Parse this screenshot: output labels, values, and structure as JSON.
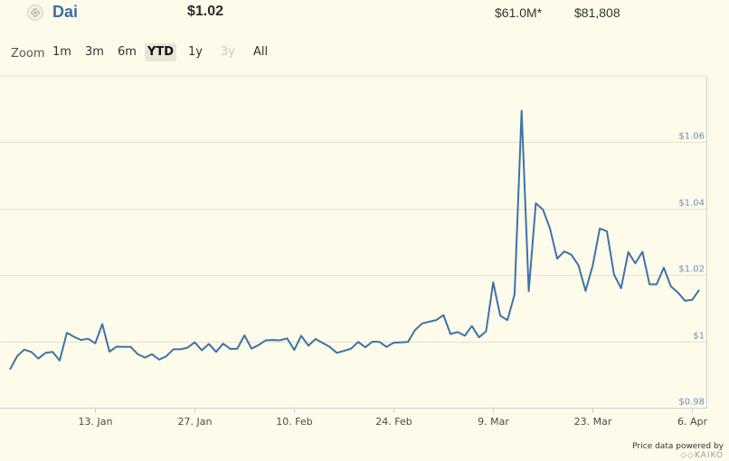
{
  "coin": {
    "name": "Dai",
    "logo_icon": "dai-logo-icon"
  },
  "price": "$1.02",
  "market_cap": "$61.0M*",
  "volume": "$81,808",
  "zoom": {
    "label": "Zoom",
    "buttons": [
      {
        "label": "1m",
        "state": "normal"
      },
      {
        "label": "3m",
        "state": "normal"
      },
      {
        "label": "6m",
        "state": "normal"
      },
      {
        "label": "YTD",
        "state": "active"
      },
      {
        "label": "1y",
        "state": "normal"
      },
      {
        "label": "3y",
        "state": "disabled"
      },
      {
        "label": "All",
        "state": "normal"
      }
    ]
  },
  "footer": {
    "powered_by": "Price data powered by",
    "provider": "KAIKO"
  },
  "colors": {
    "line": "#3c73a8",
    "grid": "#e6e1c8",
    "axis": "#c8d3de",
    "tick_label": "#6b8fbf",
    "background": "#fffbea"
  },
  "chart_data": {
    "type": "line",
    "title": "",
    "xlabel": "",
    "ylabel": "",
    "x_tick_labels": [
      "13. Jan",
      "27. Jan",
      "10. Feb",
      "24. Feb",
      "9. Mar",
      "23. Mar",
      "6. Apr"
    ],
    "y_tick_labels": [
      "$0.98",
      "$1",
      "$1.02",
      "$1.04",
      "$1.06"
    ],
    "y_ticks": [
      0.98,
      1.0,
      1.02,
      1.04,
      1.06
    ],
    "ylim": [
      0.98,
      1.08
    ],
    "x_range": [
      "2020-01-01",
      "2020-04-08"
    ],
    "grid": true,
    "series": [
      {
        "values": [
          [
            "2020-01-01",
            0.9915
          ],
          [
            "2020-01-02",
            0.9955
          ],
          [
            "2020-01-03",
            0.9975
          ],
          [
            "2020-01-04",
            0.9968
          ],
          [
            "2020-01-05",
            0.9948
          ],
          [
            "2020-01-06",
            0.9965
          ],
          [
            "2020-01-07",
            0.9968
          ],
          [
            "2020-01-08",
            0.9942
          ],
          [
            "2020-01-09",
            1.0026
          ],
          [
            "2020-01-10",
            1.0014
          ],
          [
            "2020-01-11",
            1.0004
          ],
          [
            "2020-01-12",
            1.0008
          ],
          [
            "2020-01-13",
            0.9994
          ],
          [
            "2020-01-14",
            1.0052
          ],
          [
            "2020-01-15",
            0.9969
          ],
          [
            "2020-01-16",
            0.9984
          ],
          [
            "2020-01-17",
            0.9983
          ],
          [
            "2020-01-18",
            0.9983
          ],
          [
            "2020-01-19",
            0.9961
          ],
          [
            "2020-01-20",
            0.9951
          ],
          [
            "2020-01-21",
            0.9961
          ],
          [
            "2020-01-22",
            0.9945
          ],
          [
            "2020-01-23",
            0.9955
          ],
          [
            "2020-01-24",
            0.9976
          ],
          [
            "2020-01-25",
            0.9976
          ],
          [
            "2020-01-26",
            0.9981
          ],
          [
            "2020-01-27",
            0.9997
          ],
          [
            "2020-01-28",
            0.9973
          ],
          [
            "2020-01-29",
            0.9992
          ],
          [
            "2020-01-30",
            0.9968
          ],
          [
            "2020-01-31",
            0.9993
          ],
          [
            "2020-02-01",
            0.9977
          ],
          [
            "2020-02-02",
            0.9978
          ],
          [
            "2020-02-03",
            1.0018
          ],
          [
            "2020-02-04",
            0.9978
          ],
          [
            "2020-02-05",
            0.9989
          ],
          [
            "2020-02-06",
            1.0003
          ],
          [
            "2020-02-07",
            1.0004
          ],
          [
            "2020-02-08",
            1.0003
          ],
          [
            "2020-02-09",
            1.0009
          ],
          [
            "2020-02-10",
            0.9974
          ],
          [
            "2020-02-11",
            1.0017
          ],
          [
            "2020-02-12",
            0.9987
          ],
          [
            "2020-02-13",
            1.0007
          ],
          [
            "2020-02-14",
            0.9995
          ],
          [
            "2020-02-15",
            0.9983
          ],
          [
            "2020-02-16",
            0.9965
          ],
          [
            "2020-02-17",
            0.9971
          ],
          [
            "2020-02-18",
            0.9978
          ],
          [
            "2020-02-19",
            0.9998
          ],
          [
            "2020-02-20",
            0.9982
          ],
          [
            "2020-02-21",
            0.9999
          ],
          [
            "2020-02-22",
            0.9998
          ],
          [
            "2020-02-23",
            0.9983
          ],
          [
            "2020-02-24",
            0.9996
          ],
          [
            "2020-02-25",
            0.9997
          ],
          [
            "2020-02-26",
            0.9998
          ],
          [
            "2020-02-27",
            1.0034
          ],
          [
            "2020-02-28",
            1.0054
          ],
          [
            "2020-02-29",
            1.0059
          ],
          [
            "2020-03-01",
            1.0064
          ],
          [
            "2020-03-02",
            1.0079
          ],
          [
            "2020-03-03",
            1.0022
          ],
          [
            "2020-03-04",
            1.0028
          ],
          [
            "2020-03-05",
            1.0017
          ],
          [
            "2020-03-06",
            1.0046
          ],
          [
            "2020-03-07",
            1.0012
          ],
          [
            "2020-03-08",
            1.003
          ],
          [
            "2020-03-09",
            1.0178
          ],
          [
            "2020-03-10",
            1.0077
          ],
          [
            "2020-03-11",
            1.0064
          ],
          [
            "2020-03-12",
            1.0141
          ],
          [
            "2020-03-13",
            1.0695
          ],
          [
            "2020-03-14",
            1.0151
          ],
          [
            "2020-03-15",
            1.0416
          ],
          [
            "2020-03-16",
            1.0397
          ],
          [
            "2020-03-17",
            1.034
          ],
          [
            "2020-03-18",
            1.0249
          ],
          [
            "2020-03-19",
            1.0271
          ],
          [
            "2020-03-20",
            1.0261
          ],
          [
            "2020-03-21",
            1.0229
          ],
          [
            "2020-03-22",
            1.0152
          ],
          [
            "2020-03-23",
            1.0228
          ],
          [
            "2020-03-24",
            1.034
          ],
          [
            "2020-03-25",
            1.0332
          ],
          [
            "2020-03-26",
            1.0201
          ],
          [
            "2020-03-27",
            1.016
          ],
          [
            "2020-03-28",
            1.0269
          ],
          [
            "2020-03-29",
            1.0235
          ],
          [
            "2020-03-30",
            1.027
          ],
          [
            "2020-03-31",
            1.0172
          ],
          [
            "2020-04-01",
            1.0172
          ],
          [
            "2020-04-02",
            1.0222
          ],
          [
            "2020-04-03",
            1.0166
          ],
          [
            "2020-04-04",
            1.0147
          ],
          [
            "2020-04-05",
            1.0122
          ],
          [
            "2020-04-06",
            1.0125
          ],
          [
            "2020-04-07",
            1.0155
          ]
        ]
      }
    ]
  }
}
